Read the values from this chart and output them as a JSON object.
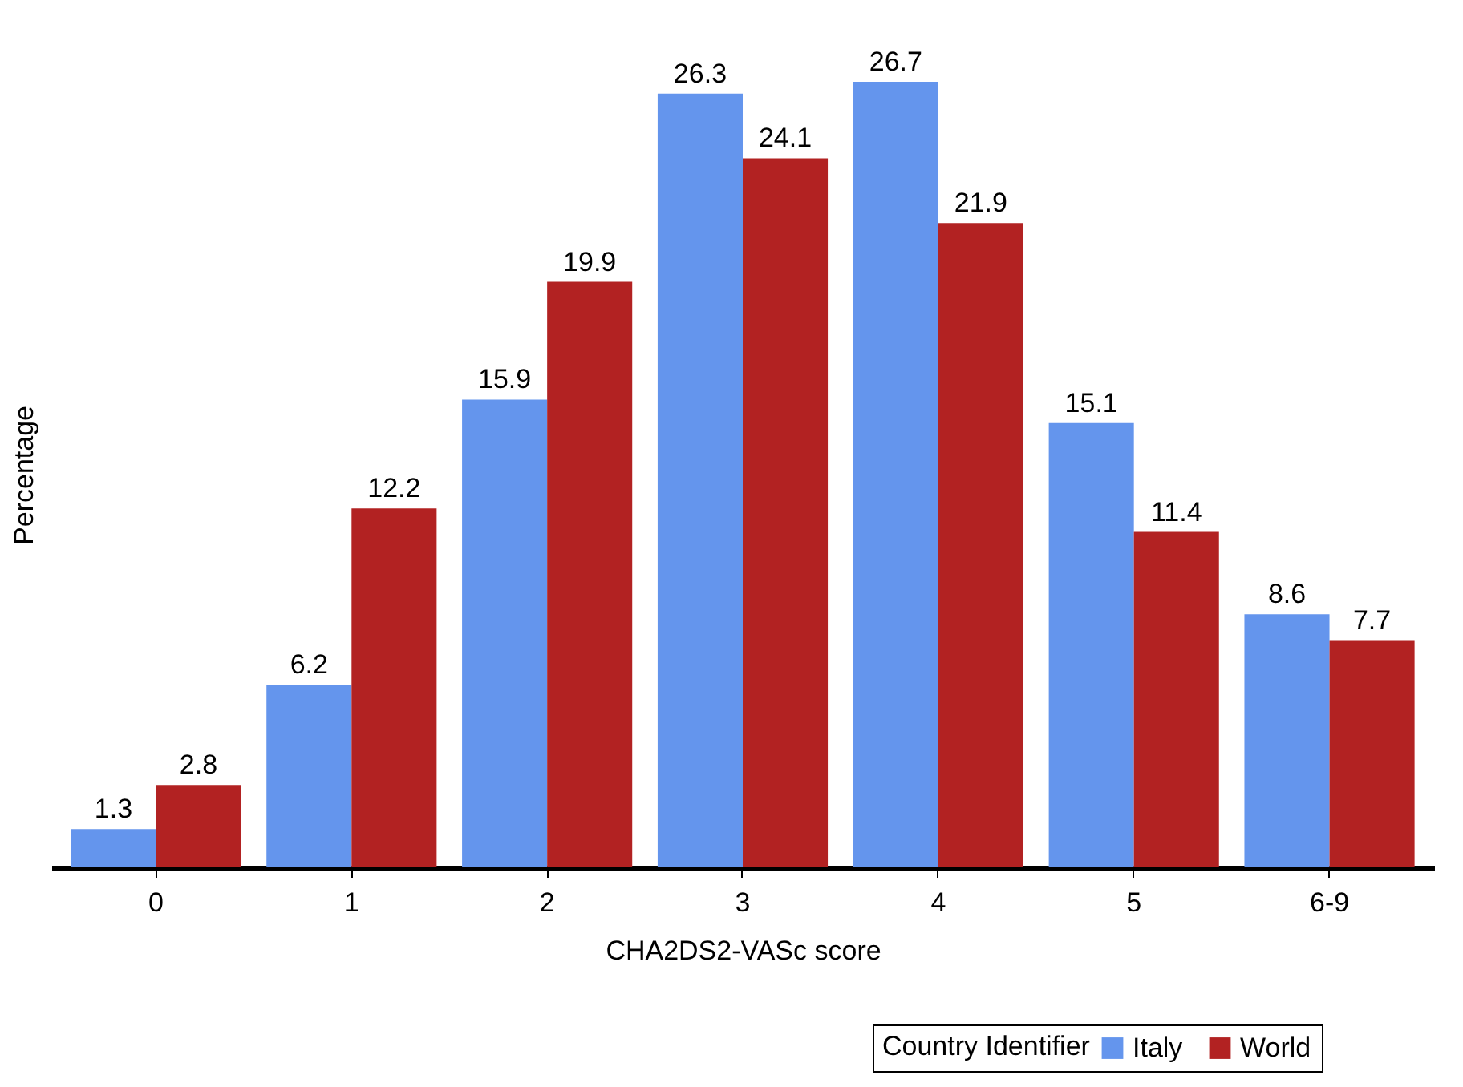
{
  "chart_data": {
    "type": "bar",
    "xlabel": "CHA2DS2-VASc score",
    "ylabel": "Percentage",
    "legend_title": "Country Identifier",
    "categories": [
      "0",
      "1",
      "2",
      "3",
      "4",
      "5",
      "6-9"
    ],
    "series": [
      {
        "name": "Italy",
        "color": "#6495ed",
        "values": [
          1.3,
          6.2,
          15.9,
          26.3,
          26.7,
          15.1,
          8.6
        ]
      },
      {
        "name": "World",
        "color": "#b22222",
        "values": [
          2.8,
          12.2,
          19.9,
          24.1,
          21.9,
          11.4,
          7.7
        ]
      }
    ],
    "data_labels": true,
    "grid": false,
    "legend": "bottom right",
    "tick_labels": "x"
  }
}
